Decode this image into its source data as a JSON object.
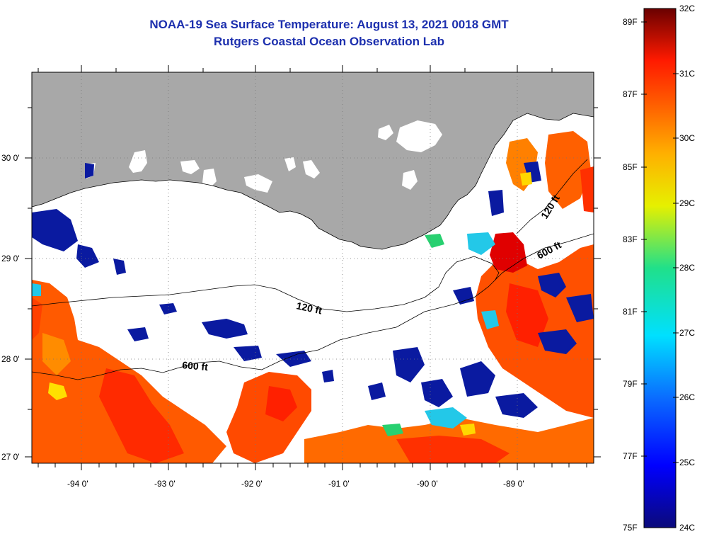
{
  "title": {
    "line1": "NOAA-19 Sea Surface Temperature:  August 13, 2021 0018 GMT",
    "line2": "Rutgers Coastal Ocean Observation Lab"
  },
  "axes": {
    "longitude_labels": [
      "-94 0'",
      "-93 0'",
      "-92 0'",
      "-91 0'",
      "-90 0'",
      "-89 0'"
    ],
    "latitude_labels": [
      "30 0'",
      "29 0'",
      "28 0'",
      "27 0'"
    ]
  },
  "contours": {
    "shelf_120": "120 ft",
    "shelf_600": "600 ft",
    "east_120": "120 ft",
    "east_600": "600 ft"
  },
  "colorbar": {
    "fahrenheit": [
      "89F",
      "87F",
      "85F",
      "83F",
      "81F",
      "79F",
      "77F",
      "75F"
    ],
    "celsius": [
      "32C",
      "31C",
      "30C",
      "29C",
      "28C",
      "27C",
      "26C",
      "25C",
      "24C"
    ],
    "range_celsius": [
      24,
      32
    ]
  },
  "colors": {
    "title": "#1c2fae",
    "land": "#a8a8a8",
    "cloud": "#ffffff"
  }
}
